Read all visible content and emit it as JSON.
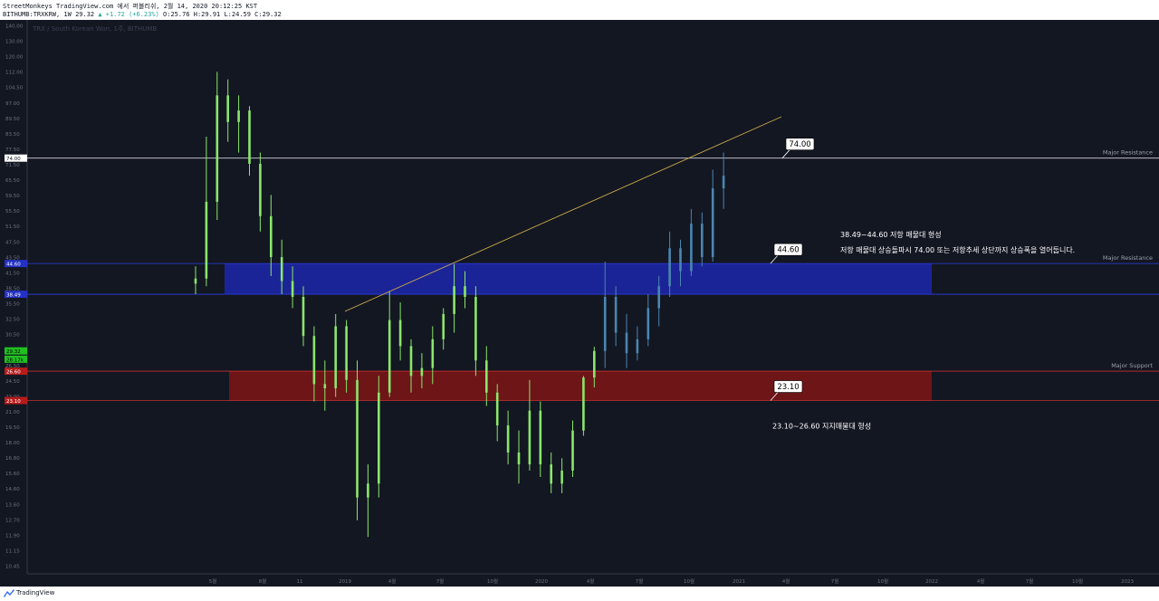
{
  "header": {
    "line1": "StreetMonkeys TradingView.com 에서 퍼블리쉬, 2월 14, 2020 20:12:25 KST",
    "symbol": "BITHUMB:TRXKRW, 1W 29.32",
    "change": "▲ +1.72 (+6.23%)",
    "ohlc": "O:25.76 H:29.91 L:24.59 C:29.32"
  },
  "watermark": "TRX / South Korean Won, 1주, BITHUMB",
  "footer": {
    "brand": "TradingView"
  },
  "colors": {
    "background": "#131722",
    "candle_old": "#8ae66a",
    "candle_projected": "#4a86b0",
    "resistance_zone": "#1b2496",
    "support_zone": "#6e1518",
    "trendline": "#c9a84a"
  },
  "chart_data": {
    "type": "candlestick",
    "y_axis": {
      "ticks": [
        "140.00",
        "130.00",
        "120.00",
        "112.00",
        "104.50",
        "97.00",
        "89.50",
        "83.50",
        "77.50",
        "71.50",
        "65.50",
        "59.50",
        "55.50",
        "51.50",
        "47.50",
        "43.50",
        "41.50",
        "38.50",
        "35.50",
        "32.50",
        "30.50",
        "28.50",
        "26.50",
        "24.50",
        "23.00",
        "21.00",
        "19.50",
        "18.00",
        "16.80",
        "15.60",
        "14.60",
        "13.60",
        "12.70",
        "11.90",
        "11.15",
        "10.45"
      ],
      "price_labels": [
        {
          "text": "74.00",
          "price": 74.0,
          "kind": "white"
        },
        {
          "text": "44.60",
          "price": 44.6,
          "kind": "blue"
        },
        {
          "text": "38.49",
          "price": 38.49,
          "kind": "blue"
        },
        {
          "text": "29.32",
          "price": 29.32,
          "kind": "green"
        },
        {
          "text": "28.17k",
          "price": 28.17,
          "kind": "green"
        },
        {
          "text": "26.60",
          "price": 26.6,
          "kind": "red"
        },
        {
          "text": "23.10",
          "price": 23.1,
          "kind": "red"
        }
      ]
    },
    "x_axis": {
      "ticks": [
        "5월",
        "8월",
        "11",
        "2019",
        "4월",
        "7월",
        "10월",
        "2020",
        "4월",
        "7월",
        "10월",
        "2021",
        "4월",
        "7월",
        "10월",
        "2022",
        "4월",
        "7월",
        "10월",
        "2023"
      ]
    },
    "levels": [
      {
        "label": "Major Resistance",
        "price": 74.0
      },
      {
        "label": "Major Resistance",
        "price": 44.6
      },
      {
        "label": "Major Support",
        "price": 26.6
      }
    ],
    "zones": [
      {
        "name": "resistance",
        "low": 38.49,
        "high": 44.6
      },
      {
        "name": "support",
        "low": 23.1,
        "high": 26.6
      }
    ],
    "callouts": [
      "74.00",
      "44.60",
      "23.10"
    ],
    "annotations": {
      "resistance_title": "38.49~44.60 저항 매물대 형성",
      "resistance_note": "저항 매물대 상승돌파시 74.00 또는 저항추세 상단까지 상승폭을 열어둡니다.",
      "support_note": "23.10~26.60 지지매물대 형성"
    },
    "candles": [
      {
        "o": 40.5,
        "h": 44.0,
        "l": 38.5,
        "c": 41.5,
        "proj": false
      },
      {
        "o": 41.5,
        "h": 82.0,
        "l": 40.0,
        "c": 60.0,
        "proj": false
      },
      {
        "o": 60.0,
        "h": 112.0,
        "l": 55.0,
        "c": 100.0,
        "proj": false
      },
      {
        "o": 100.0,
        "h": 108.0,
        "l": 80.0,
        "c": 88.0,
        "proj": false
      },
      {
        "o": 88.0,
        "h": 100.0,
        "l": 76.0,
        "c": 93.0,
        "proj": false
      },
      {
        "o": 93.0,
        "h": 95.0,
        "l": 68.0,
        "c": 72.0,
        "proj": false
      },
      {
        "o": 72.0,
        "h": 76.0,
        "l": 52.0,
        "c": 56.0,
        "proj": false
      },
      {
        "o": 56.0,
        "h": 62.0,
        "l": 42.0,
        "c": 46.0,
        "proj": false
      },
      {
        "o": 46.0,
        "h": 50.0,
        "l": 38.5,
        "c": 41.0,
        "proj": false
      },
      {
        "o": 41.0,
        "h": 44.0,
        "l": 36.0,
        "c": 38.0,
        "proj": false
      },
      {
        "o": 38.0,
        "h": 40.0,
        "l": 30.0,
        "c": 31.5,
        "proj": false
      },
      {
        "o": 31.5,
        "h": 33.0,
        "l": 23.0,
        "c": 25.0,
        "proj": false
      },
      {
        "o": 25.0,
        "h": 28.0,
        "l": 22.0,
        "c": 24.5,
        "proj": false
      },
      {
        "o": 24.5,
        "h": 35.0,
        "l": 23.5,
        "c": 33.0,
        "proj": false
      },
      {
        "o": 33.0,
        "h": 34.0,
        "l": 24.0,
        "c": 25.5,
        "proj": false
      },
      {
        "o": 25.5,
        "h": 28.0,
        "l": 13.0,
        "c": 14.5,
        "proj": false
      },
      {
        "o": 14.5,
        "h": 17.0,
        "l": 12.0,
        "c": 15.5,
        "proj": false
      },
      {
        "o": 15.5,
        "h": 26.0,
        "l": 14.5,
        "c": 24.0,
        "proj": false
      },
      {
        "o": 24.0,
        "h": 39.0,
        "l": 23.5,
        "c": 34.0,
        "proj": false
      },
      {
        "o": 34.0,
        "h": 37.0,
        "l": 28.0,
        "c": 30.0,
        "proj": false
      },
      {
        "o": 30.0,
        "h": 31.0,
        "l": 24.0,
        "c": 26.0,
        "proj": false
      },
      {
        "o": 26.0,
        "h": 29.0,
        "l": 24.5,
        "c": 27.0,
        "proj": false
      },
      {
        "o": 27.0,
        "h": 33.0,
        "l": 25.0,
        "c": 31.0,
        "proj": false
      },
      {
        "o": 31.0,
        "h": 36.0,
        "l": 29.5,
        "c": 35.0,
        "proj": false
      },
      {
        "o": 35.0,
        "h": 44.5,
        "l": 32.0,
        "c": 40.0,
        "proj": false
      },
      {
        "o": 40.0,
        "h": 43.0,
        "l": 36.0,
        "c": 38.0,
        "proj": false
      },
      {
        "o": 38.0,
        "h": 40.0,
        "l": 26.0,
        "c": 28.0,
        "proj": false
      },
      {
        "o": 28.0,
        "h": 30.0,
        "l": 22.5,
        "c": 24.0,
        "proj": false
      },
      {
        "o": 24.0,
        "h": 25.0,
        "l": 19.0,
        "c": 20.5,
        "proj": false
      },
      {
        "o": 20.5,
        "h": 22.0,
        "l": 17.0,
        "c": 18.0,
        "proj": false
      },
      {
        "o": 18.0,
        "h": 20.0,
        "l": 15.5,
        "c": 17.0,
        "proj": false
      },
      {
        "o": 17.0,
        "h": 25.5,
        "l": 16.5,
        "c": 22.0,
        "proj": false
      },
      {
        "o": 22.0,
        "h": 23.0,
        "l": 16.0,
        "c": 17.0,
        "proj": false
      },
      {
        "o": 17.0,
        "h": 18.0,
        "l": 14.8,
        "c": 15.5,
        "proj": false
      },
      {
        "o": 15.5,
        "h": 17.5,
        "l": 14.8,
        "c": 16.5,
        "proj": false
      },
      {
        "o": 16.5,
        "h": 21.0,
        "l": 16.0,
        "c": 20.0,
        "proj": false
      },
      {
        "o": 20.0,
        "h": 26.0,
        "l": 19.5,
        "c": 25.8,
        "proj": false
      },
      {
        "o": 25.8,
        "h": 29.9,
        "l": 24.6,
        "c": 29.3,
        "proj": false
      },
      {
        "o": 29.3,
        "h": 45.0,
        "l": 27.0,
        "c": 38.0,
        "proj": true
      },
      {
        "o": 38.0,
        "h": 40.0,
        "l": 30.0,
        "c": 32.0,
        "proj": true
      },
      {
        "o": 32.0,
        "h": 35.0,
        "l": 27.0,
        "c": 29.0,
        "proj": true
      },
      {
        "o": 29.0,
        "h": 33.0,
        "l": 28.0,
        "c": 31.0,
        "proj": true
      },
      {
        "o": 31.0,
        "h": 38.5,
        "l": 30.0,
        "c": 36.0,
        "proj": true
      },
      {
        "o": 36.0,
        "h": 42.0,
        "l": 33.0,
        "c": 40.0,
        "proj": true
      },
      {
        "o": 40.0,
        "h": 52.0,
        "l": 38.0,
        "c": 48.0,
        "proj": true
      },
      {
        "o": 48.0,
        "h": 50.0,
        "l": 40.0,
        "c": 43.0,
        "proj": true
      },
      {
        "o": 43.0,
        "h": 58.0,
        "l": 42.0,
        "c": 54.0,
        "proj": true
      },
      {
        "o": 54.0,
        "h": 57.0,
        "l": 44.0,
        "c": 46.0,
        "proj": true
      },
      {
        "o": 46.0,
        "h": 70.0,
        "l": 45.0,
        "c": 64.0,
        "proj": true
      },
      {
        "o": 64.0,
        "h": 76.0,
        "l": 58.0,
        "c": 68.0,
        "proj": true
      }
    ]
  }
}
